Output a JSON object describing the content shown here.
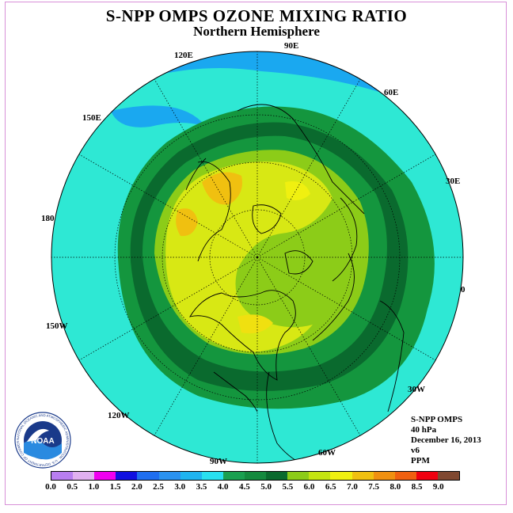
{
  "title": "S-NPP OMPS OZONE MIXING RATIO",
  "subtitle": "Northern Hemisphere",
  "logo_text": "NOAA",
  "logo_ring_text": "NATIONAL OCEANIC AND ATMOSPHERIC ADMINISTRATION · U.S. DEPARTMENT OF COMMERCE",
  "longitude_labels": [
    {
      "text": "90E"
    },
    {
      "text": "60E"
    },
    {
      "text": "30E"
    },
    {
      "text": "0"
    },
    {
      "text": "30W"
    },
    {
      "text": "60W"
    },
    {
      "text": "90W"
    },
    {
      "text": "120W"
    },
    {
      "text": "150W"
    },
    {
      "text": "180"
    },
    {
      "text": "150E"
    },
    {
      "text": "120E"
    }
  ],
  "info": {
    "instrument": "S-NPP OMPS",
    "level": "40 hPa",
    "date": "December 16, 2013",
    "version": "v6",
    "units": "PPM"
  },
  "legend": {
    "colors": [
      "#b87ef0",
      "#e0b0f0",
      "#f000f0",
      "#1010e0",
      "#1e6ef0",
      "#2a92f0",
      "#1eb4f0",
      "#28e0f0",
      "#1aa050",
      "#148a3e",
      "#0a6a2e",
      "#8ccc18",
      "#c4e410",
      "#f0f010",
      "#f0c010",
      "#f09010",
      "#f06010",
      "#f00010",
      "#804830"
    ],
    "ticks": [
      "0.0",
      "0.5",
      "1.0",
      "1.5",
      "2.0",
      "2.5",
      "3.0",
      "3.5",
      "4.0",
      "4.5",
      "5.0",
      "5.5",
      "6.0",
      "6.5",
      "7.0",
      "7.5",
      "8.0",
      "8.5",
      "9.0"
    ]
  },
  "colors": {
    "background_fill": "#2ee8d4",
    "blue_region": "#1aa8f0",
    "ring_green": "#14963e",
    "ring_dark": "#0a6a2e",
    "inner_light": "#8ccc18",
    "inner_yellow": "#d8e814",
    "inner_orange": "#f0c010"
  }
}
